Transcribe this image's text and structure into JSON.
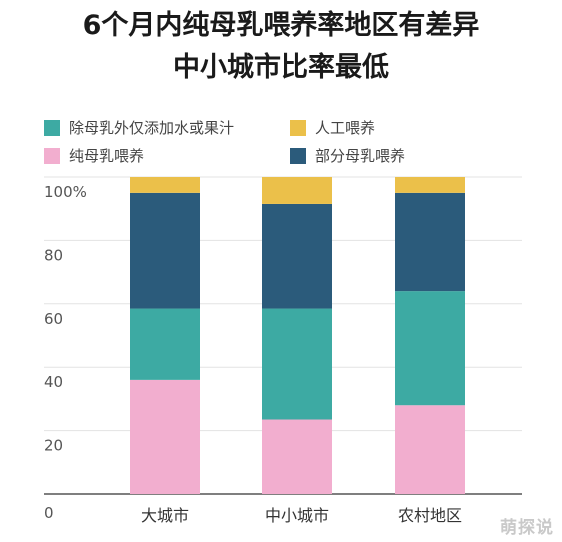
{
  "chart_data": {
    "type": "bar",
    "stacked": true,
    "title_lines": [
      "6个月内纯母乳喂养率地区有差异",
      "中小城市比率最低"
    ],
    "categories": [
      "大城市",
      "中小城市",
      "农村地区"
    ],
    "series": [
      {
        "name": "纯母乳喂养",
        "color": "#f2aecf",
        "values": [
          36,
          23.5,
          28
        ]
      },
      {
        "name": "除母乳外仅添加水或果汁",
        "color": "#3daaa3",
        "values": [
          22.5,
          35,
          36
        ]
      },
      {
        "name": "部分母乳喂养",
        "color": "#2b5b7b",
        "values": [
          36.5,
          33,
          31
        ]
      },
      {
        "name": "人工喂养",
        "color": "#ebc04a",
        "values": [
          5,
          8.5,
          5
        ]
      }
    ],
    "legend_order": [
      "除母乳外仅添加水或果汁",
      "人工喂养",
      "纯母乳喂养",
      "部分母乳喂养"
    ],
    "y_ticks": [
      "100%",
      "80",
      "60",
      "40",
      "20",
      "0"
    ],
    "y_tick_values": [
      100,
      80,
      60,
      40,
      20,
      0
    ],
    "ylim": [
      0,
      100
    ],
    "grid": true,
    "legend_position": "top"
  },
  "watermark": "萌探说"
}
